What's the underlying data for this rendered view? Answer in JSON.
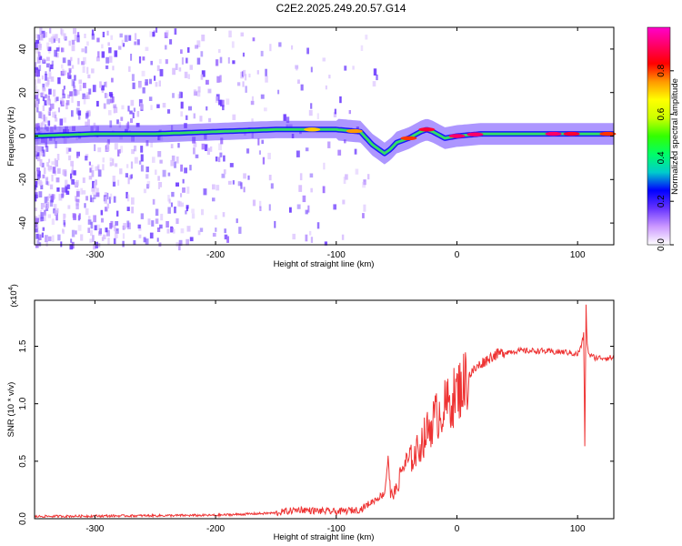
{
  "title": "C2E2.2025.249.20.57.G14",
  "chart_data": [
    {
      "type": "heatmap",
      "xlabel": "Height of straight line (km)",
      "ylabel": "Frequency (Hz)",
      "xlim": [
        -350,
        130
      ],
      "ylim": [
        -50,
        50
      ],
      "xticks": [
        -300,
        -200,
        -100,
        0,
        100
      ],
      "xtick_labels": [
        "-300",
        "-200",
        "-100",
        "0",
        "100"
      ],
      "yticks": [
        -40,
        -20,
        0,
        20,
        40
      ],
      "ytick_labels": [
        "-40",
        "-20",
        "0",
        "20",
        "40"
      ],
      "ridge": {
        "x": [
          -350,
          -300,
          -250,
          -200,
          -150,
          -120,
          -100,
          -80,
          -70,
          -60,
          -55,
          -50,
          -40,
          -30,
          -25,
          -20,
          -10,
          0,
          20,
          60,
          100,
          130
        ],
        "y": [
          0,
          1,
          1,
          2,
          3,
          3,
          3,
          2,
          -4,
          -8,
          -6,
          -3,
          -1,
          2,
          3,
          2,
          -1,
          0,
          1,
          1,
          1,
          1
        ]
      },
      "colorbar": {
        "label": "Normalized spectral amplitude",
        "range": [
          0.0,
          1.0
        ],
        "ticks": [
          0.0,
          0.2,
          0.4,
          0.6,
          0.8
        ],
        "tick_labels": [
          "0.0",
          "0.2",
          "0.4",
          "0.6",
          "0.8"
        ],
        "colors": [
          "#ffffff",
          "#cc99ff",
          "#6633ff",
          "#0000ff",
          "#00cccc",
          "#00ff66",
          "#33ff00",
          "#ccff00",
          "#ffff00",
          "#ff9900",
          "#ff0000",
          "#ff0066",
          "#ff00cc"
        ]
      }
    },
    {
      "type": "line",
      "xlabel": "Height of straight line (km)",
      "ylabel": "SNR (10 * v/v)",
      "scale_note": "(x10",
      "scale_exp": "4",
      "scale_close": ")",
      "xlim": [
        -350,
        130
      ],
      "ylim": [
        0,
        1.9
      ],
      "xticks": [
        -300,
        -200,
        -100,
        0,
        100
      ],
      "xtick_labels": [
        "-300",
        "-200",
        "-100",
        "0",
        "100"
      ],
      "yticks": [
        0.0,
        0.5,
        1.0,
        1.5
      ],
      "ytick_labels": [
        "0.0",
        "0.5",
        "1.0",
        "1.5"
      ],
      "color": "#ee3333",
      "series": [
        {
          "name": "SNR",
          "x": [
            -350,
            -200,
            -150,
            -130,
            -120,
            -100,
            -80,
            -70,
            -60,
            -57,
            -55,
            -50,
            -45,
            -40,
            -35,
            -30,
            -25,
            -20,
            -15,
            -10,
            -5,
            0,
            10,
            20,
            30,
            40,
            50,
            60,
            70,
            80,
            90,
            100,
            103,
            105,
            106,
            107,
            108,
            110,
            115,
            120,
            130
          ],
          "y": [
            0.02,
            0.03,
            0.05,
            0.08,
            0.07,
            0.06,
            0.08,
            0.15,
            0.22,
            0.55,
            0.2,
            0.25,
            0.45,
            0.5,
            0.55,
            0.65,
            0.75,
            0.85,
            0.92,
            0.97,
            1.02,
            1.1,
            1.25,
            1.35,
            1.42,
            1.45,
            1.46,
            1.46,
            1.46,
            1.45,
            1.45,
            1.43,
            1.5,
            1.6,
            0.65,
            1.85,
            1.5,
            1.42,
            1.4,
            1.4,
            1.4
          ]
        }
      ]
    }
  ]
}
